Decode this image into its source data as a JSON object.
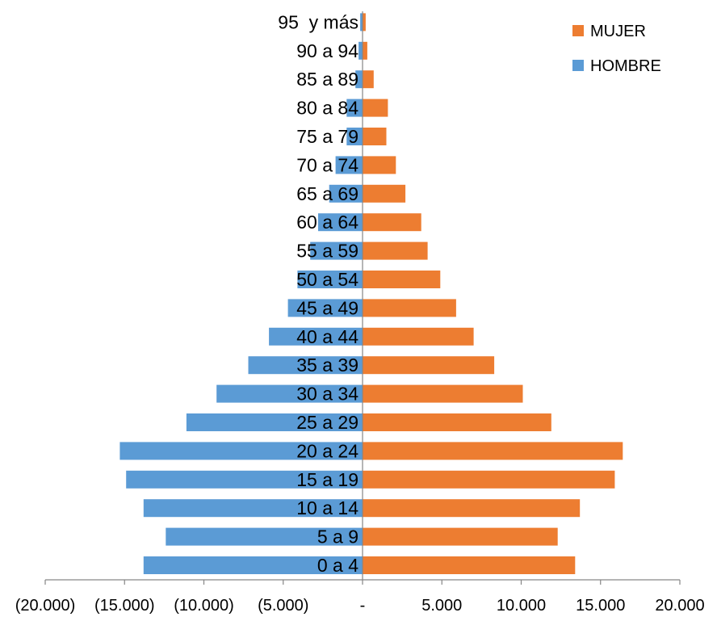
{
  "chart_data": {
    "type": "bar",
    "orientation": "horizontal",
    "categories": [
      "0 a 4",
      "5 a 9",
      "10 a 14",
      "15 a 19",
      "20 a 24",
      "25 a 29",
      "30 a 34",
      "35 a 39",
      "40 a 44",
      "45 a 49",
      "50 a 54",
      "55 a 59",
      "60 a 64",
      "65 a 69",
      "70 a 74",
      "75 a 79",
      "80 a 84",
      "85 a 89",
      "90 a 94",
      "95  y más"
    ],
    "series": [
      {
        "name": "HOMBRE",
        "color": "#5b9bd5",
        "values": [
          -13800,
          -12400,
          -13800,
          -14900,
          -15300,
          -11100,
          -9200,
          -7200,
          -5900,
          -4700,
          -4100,
          -3300,
          -2800,
          -2100,
          -1700,
          -1000,
          -1000,
          -450,
          -250,
          -150
        ]
      },
      {
        "name": "MUJER",
        "color": "#ed7d31",
        "values": [
          13400,
          12300,
          13700,
          15900,
          16400,
          11900,
          10100,
          8300,
          7000,
          5900,
          4900,
          4100,
          3700,
          2700,
          2100,
          1500,
          1600,
          700,
          300,
          200
        ]
      }
    ],
    "xlim": [
      -20000,
      20000
    ],
    "x_ticks": [
      -20000,
      -15000,
      -10000,
      -5000,
      0,
      5000,
      10000,
      15000,
      20000
    ],
    "x_tick_labels": [
      "(20.000)",
      "(15.000)",
      "(10.000)",
      "(5.000)",
      "-",
      "5.000",
      "10.000",
      "15.000",
      "20.000"
    ],
    "legend": {
      "position": "top-right",
      "entries": [
        "MUJER",
        "HOMBRE"
      ]
    },
    "grid": false,
    "title": "",
    "xlabel": "",
    "ylabel": ""
  }
}
